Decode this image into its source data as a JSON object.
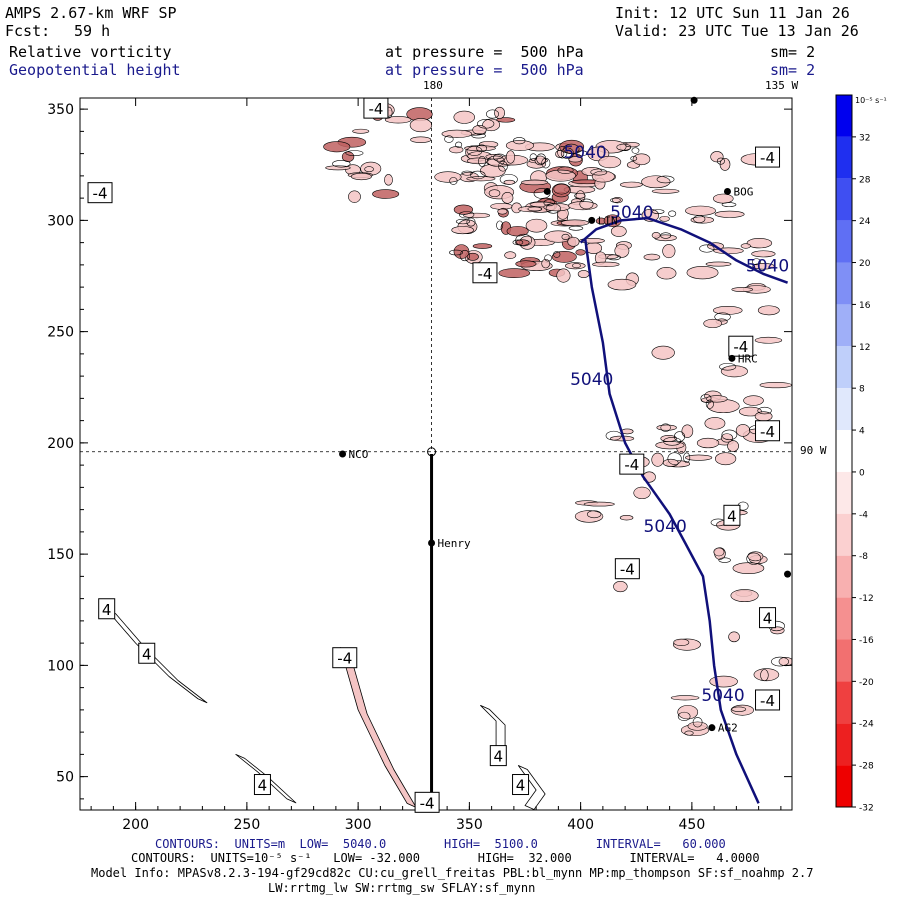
{
  "header": {
    "model": "AMPS 2.67-km WRF SP",
    "forecast_label": "Fcst:",
    "forecast_value": "59 h",
    "init": "Init: 12 UTC Sun 11 Jan 26",
    "valid": "Valid: 23 UTC Tue 13 Jan 26",
    "field1": "Relative vorticity",
    "field1_level": "at pressure =  500 hPa",
    "field1_sm": "sm= 2",
    "field2": "Geopotential height",
    "field2_level": "at pressure =  500 hPa",
    "field2_sm": "sm= 2"
  },
  "map_labels": {
    "lon_180": "180",
    "lon_135w": "135 W",
    "lon_90w": "90 W"
  },
  "footer": {
    "line1": "CONTOURS:  UNITS=m  LOW=  5040.0        HIGH=  5100.0        INTERVAL=   60.000",
    "line2": "CONTOURS:  UNITS=10⁻⁵ s⁻¹   LOW= -32.000        HIGH=  32.000        INTERVAL=   4.0000",
    "line3": "Model Info: MPASv8.2.3-194-gf29cd82c CU:cu_grell_freitas PBL:bl_mynn MP:mp_thompson SF:sf_noahmp 2.7",
    "line4": "LW:rrtmg_lw SW:rrtmg_sw SFLAY:sf_mynn"
  },
  "colorbar": {
    "unit_label": "10⁻⁵ s⁻¹",
    "ticks": [
      "32",
      "28",
      "24",
      "20",
      "16",
      "12",
      "8",
      "4",
      "0",
      "-4",
      "-8",
      "-12",
      "-16",
      "-20",
      "-24",
      "-28",
      "-32"
    ],
    "colors": [
      "#0000ee",
      "#1f2ff0",
      "#3f4ff2",
      "#5f6ff4",
      "#7f8ff6",
      "#9faff8",
      "#bfcffa",
      "#e0e8fc",
      "#ffffff",
      "#fde8e8",
      "#fbd0d0",
      "#f8b0b0",
      "#f59090",
      "#f27070",
      "#ef4040",
      "#ed2020",
      "#ee0000"
    ]
  },
  "colors": {
    "height_contour": "#10107a",
    "vorticity_fill": "#f4c4c4",
    "vorticity_dark": "#c06060"
  },
  "chart_data": {
    "type": "contour-map",
    "title": "Relative vorticity and Geopotential height at 500 hPa",
    "xlim": [
      175,
      495
    ],
    "ylim": [
      35,
      355
    ],
    "x_ticks": [
      200,
      250,
      300,
      350,
      400,
      450
    ],
    "y_ticks": [
      50,
      100,
      150,
      200,
      250,
      300,
      350
    ],
    "height_contour_levels": [
      5040
    ],
    "height_contour_5040": [
      {
        "x": 400,
        "y": 290
      },
      {
        "x": 407,
        "y": 296
      },
      {
        "x": 418,
        "y": 300
      },
      {
        "x": 430,
        "y": 301
      },
      {
        "x": 445,
        "y": 296
      },
      {
        "x": 458,
        "y": 290
      },
      {
        "x": 470,
        "y": 282
      },
      {
        "x": 482,
        "y": 276
      },
      {
        "x": 493,
        "y": 272
      }
    ],
    "height_contour_5040_b": [
      {
        "x": 402,
        "y": 292
      },
      {
        "x": 405,
        "y": 270
      },
      {
        "x": 410,
        "y": 245
      },
      {
        "x": 413,
        "y": 222
      },
      {
        "x": 420,
        "y": 200
      },
      {
        "x": 428,
        "y": 185
      },
      {
        "x": 440,
        "y": 168
      },
      {
        "x": 447,
        "y": 155
      },
      {
        "x": 455,
        "y": 140
      },
      {
        "x": 458,
        "y": 120
      },
      {
        "x": 460,
        "y": 100
      },
      {
        "x": 463,
        "y": 80
      },
      {
        "x": 470,
        "y": 60
      },
      {
        "x": 480,
        "y": 38
      }
    ],
    "height_labels": [
      {
        "x": 402,
        "y": 328,
        "text": "5040"
      },
      {
        "x": 423,
        "y": 301,
        "text": "5040"
      },
      {
        "x": 484,
        "y": 277,
        "text": "5040"
      },
      {
        "x": 405,
        "y": 226,
        "text": "5040"
      },
      {
        "x": 438,
        "y": 160,
        "text": "5040"
      },
      {
        "x": 464,
        "y": 84,
        "text": "5040"
      }
    ],
    "vorticity_contour_labels": [
      {
        "x": 308,
        "y": 350,
        "text": "-4"
      },
      {
        "x": 484,
        "y": 328,
        "text": "-4"
      },
      {
        "x": 184,
        "y": 312,
        "text": "-4"
      },
      {
        "x": 357,
        "y": 276,
        "text": "-4"
      },
      {
        "x": 472,
        "y": 243,
        "text": "-4"
      },
      {
        "x": 484,
        "y": 205,
        "text": "-4"
      },
      {
        "x": 423,
        "y": 190,
        "text": "-4"
      },
      {
        "x": 468,
        "y": 167,
        "text": "4"
      },
      {
        "x": 421,
        "y": 143,
        "text": "-4"
      },
      {
        "x": 484,
        "y": 121,
        "text": "4"
      },
      {
        "x": 187,
        "y": 125,
        "text": "4"
      },
      {
        "x": 205,
        "y": 105,
        "text": "4"
      },
      {
        "x": 294,
        "y": 103,
        "text": "-4"
      },
      {
        "x": 484,
        "y": 84,
        "text": "-4"
      },
      {
        "x": 363,
        "y": 59,
        "text": "4"
      },
      {
        "x": 373,
        "y": 46,
        "text": "4"
      },
      {
        "x": 257,
        "y": 46,
        "text": "4"
      },
      {
        "x": 331,
        "y": 38,
        "text": "-4"
      }
    ],
    "stations": [
      {
        "x": 293,
        "y": 195,
        "name": "NCO"
      },
      {
        "x": 333,
        "y": 155,
        "name": "Henry"
      },
      {
        "x": 466,
        "y": 313,
        "name": "BOG"
      },
      {
        "x": 468,
        "y": 238,
        "name": "HRC"
      },
      {
        "x": 459,
        "y": 72,
        "name": "AG2"
      },
      {
        "x": 405,
        "y": 300,
        "name": "LIN"
      },
      {
        "x": 385,
        "y": 313,
        "name": ""
      },
      {
        "x": 493,
        "y": 141,
        "name": ""
      },
      {
        "x": 451,
        "y": 354,
        "name": ""
      }
    ],
    "cross_section": {
      "x": [
        333,
        333
      ],
      "y": [
        195,
        35
      ]
    },
    "reference_lines": {
      "x": 333,
      "y": 196
    }
  }
}
